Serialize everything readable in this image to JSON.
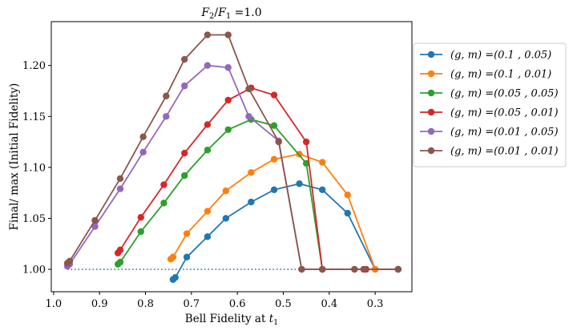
{
  "chart_data": {
    "type": "line",
    "title": "F_2/F_1 =1.0",
    "title_parts": {
      "f2": "F",
      "sub2": "2",
      "slash": "/",
      "f1": "F",
      "sub1": "1",
      "rest": " =1.0"
    },
    "xlabel": "Bell Fidelity at t_1",
    "xlabel_parts": {
      "main": "Bell Fidelity at ",
      "t": "t",
      "sub": "1"
    },
    "ylabel": "Final/ max (Initial Fidelity)",
    "xlim": [
      1.005,
      0.22
    ],
    "ylim": [
      0.978,
      1.243
    ],
    "x_inverted": true,
    "xticks": [
      1.0,
      0.9,
      0.8,
      0.7,
      0.6,
      0.5,
      0.4,
      0.3
    ],
    "xtick_labels": [
      "1.0",
      "0.9",
      "0.8",
      "0.7",
      "0.6",
      "0.5",
      "0.4",
      "0.3"
    ],
    "yticks": [
      1.0,
      1.05,
      1.1,
      1.15,
      1.2
    ],
    "ytick_labels": [
      "1.00",
      "1.05",
      "1.10",
      "1.15",
      "1.20"
    ],
    "grid": false,
    "legend_placement": "outside-right",
    "reference_line": {
      "y": 1.0,
      "x_from": 0.97,
      "x_to": 0.25,
      "style": "dotted",
      "color": "#1f77b4"
    },
    "series": [
      {
        "name": "(g, m) =(0.1 , 0.05)",
        "color": "#1f77b4",
        "x": [
          0.74,
          0.735,
          0.71,
          0.665,
          0.625,
          0.57,
          0.52,
          0.465,
          0.415,
          0.36,
          0.3,
          0.25
        ],
        "y": [
          0.99,
          0.992,
          1.012,
          1.032,
          1.05,
          1.066,
          1.078,
          1.084,
          1.078,
          1.055,
          1.0,
          1.0
        ]
      },
      {
        "name": "(g, m) =(0.1 , 0.01)",
        "color": "#ff7f0e",
        "x": [
          0.745,
          0.74,
          0.71,
          0.665,
          0.625,
          0.57,
          0.52,
          0.465,
          0.415,
          0.36,
          0.3,
          0.25
        ],
        "y": [
          1.01,
          1.012,
          1.035,
          1.057,
          1.077,
          1.095,
          1.108,
          1.113,
          1.105,
          1.073,
          1.0,
          1.0
        ]
      },
      {
        "name": "(g, m) =(0.05 , 0.05)",
        "color": "#2ca02c",
        "x": [
          0.86,
          0.855,
          0.81,
          0.76,
          0.715,
          0.665,
          0.62,
          0.57,
          0.52,
          0.45,
          0.415,
          0.32,
          0.25
        ],
        "y": [
          1.005,
          1.007,
          1.037,
          1.065,
          1.092,
          1.117,
          1.137,
          1.147,
          1.141,
          1.104,
          1.0,
          1.0,
          1.0
        ]
      },
      {
        "name": "(g, m) =(0.05 , 0.01)",
        "color": "#d62728",
        "x": [
          0.86,
          0.855,
          0.81,
          0.76,
          0.715,
          0.665,
          0.62,
          0.57,
          0.52,
          0.45,
          0.415,
          0.32,
          0.25
        ],
        "y": [
          1.016,
          1.019,
          1.051,
          1.083,
          1.114,
          1.142,
          1.166,
          1.178,
          1.171,
          1.125,
          1.0,
          1.0,
          1.0
        ]
      },
      {
        "name": "(g, m) =(0.01 , 0.05)",
        "color": "#9467bd",
        "x": [
          0.97,
          0.965,
          0.91,
          0.855,
          0.805,
          0.755,
          0.715,
          0.665,
          0.62,
          0.575,
          0.51,
          0.46,
          0.415,
          0.345,
          0.325,
          0.25
        ],
        "y": [
          1.003,
          1.005,
          1.042,
          1.079,
          1.115,
          1.15,
          1.18,
          1.2,
          1.198,
          1.15,
          1.126,
          1.0,
          1.0,
          1.0,
          1.0,
          1.0
        ]
      },
      {
        "name": "(g, m) =(0.01 , 0.01)",
        "color": "#8c564b",
        "x": [
          0.97,
          0.965,
          0.91,
          0.855,
          0.805,
          0.755,
          0.715,
          0.665,
          0.62,
          0.575,
          0.51,
          0.46,
          0.415,
          0.345,
          0.325,
          0.25
        ],
        "y": [
          1.006,
          1.008,
          1.048,
          1.089,
          1.13,
          1.17,
          1.206,
          1.23,
          1.23,
          1.177,
          1.125,
          1.0,
          1.0,
          1.0,
          1.0,
          1.0
        ]
      }
    ]
  }
}
